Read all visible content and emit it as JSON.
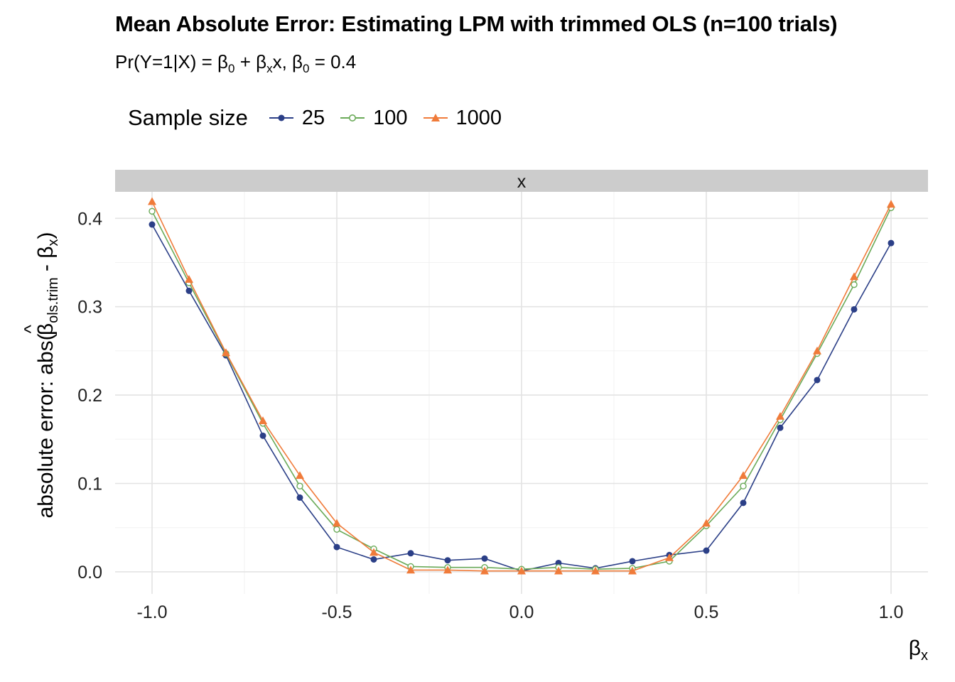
{
  "title": "Mean Absolute Error: Estimating LPM with trimmed OLS (n=100 trials)",
  "subtitle": {
    "pre": "Pr(Y=1|X) = ",
    "b0": "β",
    "b0_sub": "0",
    "plus": " + ",
    "bx": "β",
    "bx_sub": "x",
    "mid": "x, ",
    "b0b": "β",
    "b0b_sub": "0",
    "post": " = 0.4"
  },
  "legend": {
    "title": "Sample size",
    "items": [
      "25",
      "100",
      "1000"
    ]
  },
  "chart_data": {
    "type": "line",
    "facet_label": "x",
    "xlabel": {
      "main": "β",
      "sub": "x"
    },
    "ylabel": {
      "pre": "absolute error: abs(",
      "hat": "^",
      "beta": "β",
      "sub": "ols.trim",
      "post": " - β",
      "sub2": "x",
      "close": ")"
    },
    "x": [
      -1.0,
      -0.9,
      -0.8,
      -0.7,
      -0.6,
      -0.5,
      -0.4,
      -0.3,
      -0.2,
      -0.1,
      0.0,
      0.1,
      0.2,
      0.3,
      0.4,
      0.5,
      0.6,
      0.7,
      0.8,
      0.9,
      1.0
    ],
    "xlim": [
      -1.1,
      1.1
    ],
    "ylim": [
      -0.025,
      0.43
    ],
    "xticks": [
      -1.0,
      -0.5,
      0.0,
      0.5,
      1.0
    ],
    "xtick_labels": [
      "-1.0",
      "-0.5",
      "0.0",
      "0.5",
      "1.0"
    ],
    "yticks": [
      0.0,
      0.1,
      0.2,
      0.3,
      0.4
    ],
    "ytick_labels": [
      "0.0",
      "0.1",
      "0.2",
      "0.3",
      "0.4"
    ],
    "grid": true,
    "legend_position": "top",
    "series": [
      {
        "name": "25",
        "color": "#2b3f87",
        "marker": "circle-filled",
        "values": [
          0.393,
          0.318,
          0.245,
          0.154,
          0.084,
          0.028,
          0.014,
          0.021,
          0.013,
          0.015,
          0.001,
          0.01,
          0.004,
          0.012,
          0.019,
          0.024,
          0.078,
          0.163,
          0.217,
          0.297,
          0.372
        ]
      },
      {
        "name": "100",
        "color": "#6aaa58",
        "marker": "circle-open",
        "values": [
          0.408,
          0.327,
          0.247,
          0.168,
          0.097,
          0.048,
          0.026,
          0.006,
          0.005,
          0.005,
          0.003,
          0.005,
          0.003,
          0.004,
          0.012,
          0.052,
          0.097,
          0.172,
          0.247,
          0.325,
          0.412
        ]
      },
      {
        "name": "1000",
        "color": "#f07b3a",
        "marker": "triangle-filled",
        "values": [
          0.419,
          0.331,
          0.248,
          0.171,
          0.109,
          0.055,
          0.022,
          0.002,
          0.002,
          0.001,
          0.001,
          0.001,
          0.001,
          0.001,
          0.016,
          0.055,
          0.109,
          0.176,
          0.25,
          0.334,
          0.416
        ]
      }
    ]
  }
}
